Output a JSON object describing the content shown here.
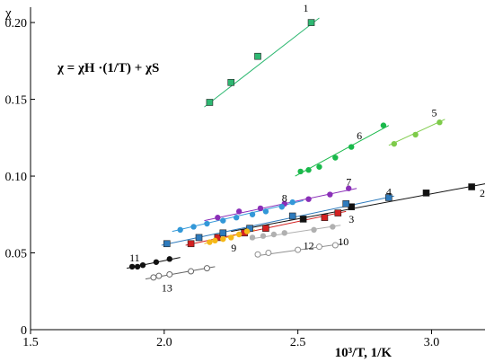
{
  "chart_data": {
    "type": "scatter",
    "formula": "χ = χH ·(1/T) + χS",
    "xlabel": "10³/T, 1/K",
    "ylabel": "χ",
    "xlim": [
      1.5,
      3.2
    ],
    "ylim": [
      0,
      0.21
    ],
    "xticks": [
      "1.5",
      "2.0",
      "2.5",
      "3.0"
    ],
    "xtick_values": [
      1.5,
      2.0,
      2.5,
      3.0
    ],
    "yticks": [
      "0",
      "0.05",
      "0.10",
      "0.15",
      "0.20"
    ],
    "ytick_values": [
      0,
      0.05,
      0.1,
      0.15,
      0.2
    ],
    "grid": false,
    "series": [
      {
        "label": "1",
        "color": "#2eb872",
        "marker": "square",
        "x": [
          2.17,
          2.25,
          2.35,
          2.55
        ],
        "y": [
          0.148,
          0.161,
          0.178,
          0.2
        ],
        "fit": [
          2.15,
          0.145,
          2.58,
          0.203
        ]
      },
      {
        "label": "2",
        "color": "#111111",
        "marker": "square",
        "x": [
          2.52,
          2.7,
          2.98,
          3.15
        ],
        "y": [
          0.072,
          0.08,
          0.089,
          0.093
        ],
        "fit": [
          2.25,
          0.064,
          3.2,
          0.095
        ]
      },
      {
        "label": "3",
        "color": "#d42020",
        "marker": "square",
        "x": [
          2.1,
          2.2,
          2.3,
          2.38,
          2.6,
          2.65
        ],
        "y": [
          0.056,
          0.06,
          0.063,
          0.066,
          0.073,
          0.076
        ],
        "fit": [
          2.08,
          0.055,
          2.68,
          0.077
        ]
      },
      {
        "label": "4",
        "color": "#2e7bbd",
        "marker": "square",
        "x": [
          2.01,
          2.13,
          2.22,
          2.32,
          2.48,
          2.68,
          2.84
        ],
        "y": [
          0.056,
          0.06,
          0.063,
          0.066,
          0.074,
          0.082,
          0.086
        ],
        "fit": [
          1.99,
          0.055,
          2.86,
          0.087
        ]
      },
      {
        "label": "5",
        "color": "#7ecb4a",
        "marker": "circle",
        "x": [
          2.86,
          2.94,
          3.03
        ],
        "y": [
          0.121,
          0.127,
          0.135
        ],
        "fit": [
          2.84,
          0.12,
          3.05,
          0.137
        ]
      },
      {
        "label": "6",
        "color": "#1ab94b",
        "marker": "circle",
        "x": [
          2.51,
          2.54,
          2.58,
          2.64,
          2.7,
          2.82
        ],
        "y": [
          0.103,
          0.104,
          0.106,
          0.112,
          0.119,
          0.133
        ],
        "fit": [
          2.49,
          0.1,
          2.84,
          0.133
        ]
      },
      {
        "label": "7",
        "color": "#8a2fb8",
        "marker": "circle",
        "x": [
          2.2,
          2.28,
          2.36,
          2.45,
          2.54,
          2.62,
          2.69
        ],
        "y": [
          0.073,
          0.077,
          0.079,
          0.082,
          0.085,
          0.088,
          0.092
        ],
        "fit": [
          2.15,
          0.071,
          2.72,
          0.092
        ]
      },
      {
        "label": "8",
        "color": "#3398d8",
        "marker": "circle",
        "x": [
          2.06,
          2.11,
          2.16,
          2.22,
          2.27,
          2.33,
          2.38,
          2.44,
          2.48
        ],
        "y": [
          0.065,
          0.067,
          0.069,
          0.071,
          0.073,
          0.075,
          0.077,
          0.08,
          0.083
        ],
        "fit": [
          2.03,
          0.064,
          2.52,
          0.084
        ]
      },
      {
        "label": "9",
        "color": "#f5b818",
        "marker": "circle",
        "x": [
          2.17,
          2.19,
          2.22,
          2.25,
          2.28,
          2.31
        ],
        "y": [
          0.057,
          0.058,
          0.059,
          0.06,
          0.062,
          0.064
        ],
        "fit": [
          2.15,
          0.056,
          2.34,
          0.065
        ]
      },
      {
        "label": "10",
        "color": "#b0b0b0",
        "marker": "circle",
        "x": [
          2.33,
          2.37,
          2.41,
          2.45,
          2.56,
          2.63
        ],
        "y": [
          0.06,
          0.061,
          0.062,
          0.063,
          0.065,
          0.067
        ],
        "fit": [
          2.32,
          0.059,
          2.66,
          0.068
        ]
      },
      {
        "label": "11",
        "color": "#111111",
        "marker": "circle",
        "x": [
          1.88,
          1.9,
          1.92,
          1.97,
          2.02
        ],
        "y": [
          0.041,
          0.041,
          0.042,
          0.044,
          0.046
        ],
        "fit": [
          1.86,
          0.04,
          2.06,
          0.047
        ]
      },
      {
        "label": "12",
        "color": "#909090",
        "marker": "circle-open",
        "x": [
          2.35,
          2.39,
          2.5,
          2.58,
          2.64
        ],
        "y": [
          0.049,
          0.05,
          0.052,
          0.054,
          0.055
        ],
        "fit": [
          2.34,
          0.048,
          2.67,
          0.056
        ]
      },
      {
        "label": "13",
        "color": "#666666",
        "marker": "circle-open",
        "x": [
          1.96,
          1.98,
          2.02,
          2.1,
          2.16
        ],
        "y": [
          0.034,
          0.035,
          0.036,
          0.038,
          0.04
        ],
        "fit": [
          1.93,
          0.033,
          2.19,
          0.041
        ]
      }
    ]
  }
}
